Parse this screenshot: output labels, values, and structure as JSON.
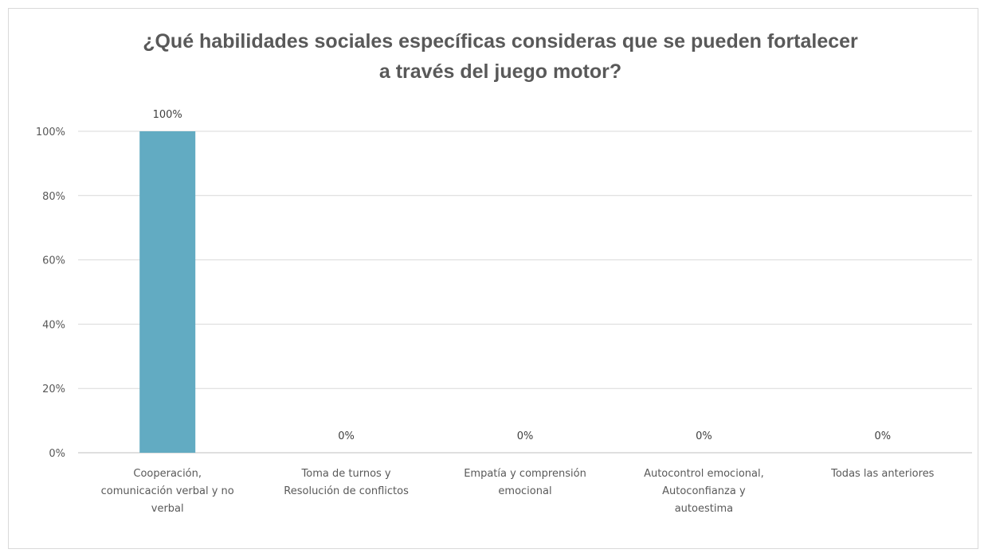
{
  "chart_data": {
    "type": "bar",
    "title_lines": [
      "¿Qué habilidades sociales específicas consideras que se pueden fortalecer",
      "a través del juego motor?"
    ],
    "categories": [
      [
        "Cooperación,",
        "comunicación verbal y no",
        "verbal"
      ],
      [
        "Toma de turnos y",
        "Resolución de conflictos"
      ],
      [
        "Empatía y comprensión",
        "emocional"
      ],
      [
        "Autocontrol emocional,",
        "Autoconfianza y",
        "autoestima"
      ],
      [
        "Todas las anteriores"
      ]
    ],
    "values": [
      100,
      0,
      0,
      0,
      0
    ],
    "data_labels": [
      "100%",
      "0%",
      "0%",
      "0%",
      "0%"
    ],
    "y_ticks": [
      "0%",
      "20%",
      "40%",
      "60%",
      "80%",
      "100%"
    ],
    "ylim": [
      0,
      100
    ],
    "grid": true,
    "bar_color": "#62abc2",
    "grid_color": "#d9d9d9"
  }
}
